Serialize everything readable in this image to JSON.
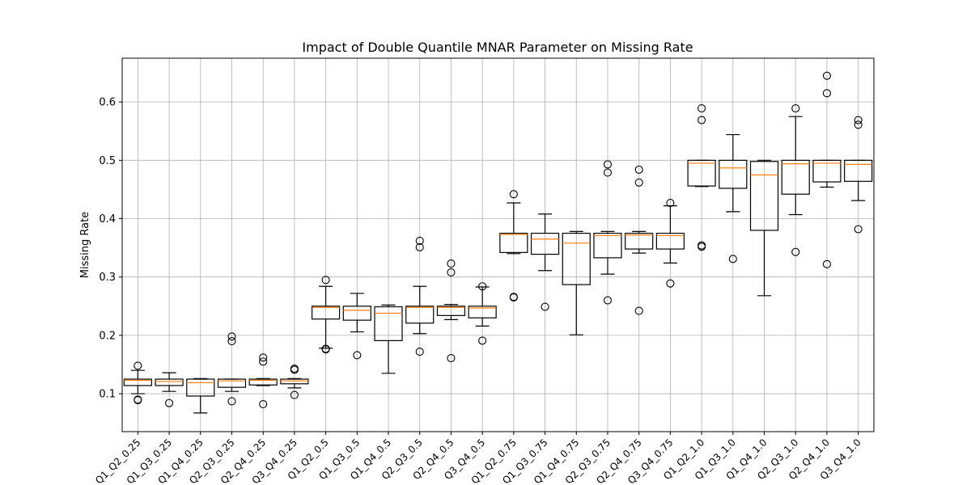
{
  "chart_data": {
    "type": "boxplot",
    "title": "Impact of Double Quantile MNAR Parameter on Missing Rate",
    "xlabel": "",
    "ylabel": "Missing Rate",
    "ylim": [
      0.035,
      0.675
    ],
    "yticks": [
      0.1,
      0.2,
      0.3,
      0.4,
      0.5,
      0.6
    ],
    "ytick_labels": [
      "0.1",
      "0.2",
      "0.3",
      "0.4",
      "0.5",
      "0.6"
    ],
    "grid": true,
    "categories": [
      "Q1_Q2_0.25",
      "Q1_Q3_0.25",
      "Q1_Q4_0.25",
      "Q2_Q3_0.25",
      "Q2_Q4_0.25",
      "Q3_Q4_0.25",
      "Q1_Q2_0.5",
      "Q1_Q3_0.5",
      "Q1_Q4_0.5",
      "Q2_Q3_0.5",
      "Q2_Q4_0.5",
      "Q3_Q4_0.5",
      "Q1_Q2_0.75",
      "Q1_Q3_0.75",
      "Q1_Q4_0.75",
      "Q2_Q3_0.75",
      "Q2_Q4_0.75",
      "Q3_Q4_0.75",
      "Q1_Q2_1.0",
      "Q1_Q3_1.0",
      "Q1_Q4_1.0",
      "Q2_Q3_1.0",
      "Q2_Q4_1.0",
      "Q3_Q4_1.0"
    ],
    "boxes": [
      {
        "whislo": 0.1,
        "q1": 0.114,
        "med": 0.123,
        "q3": 0.125,
        "whishi": 0.14,
        "fliers": [
          0.148,
          0.09,
          0.089
        ]
      },
      {
        "whislo": 0.104,
        "q1": 0.114,
        "med": 0.121,
        "q3": 0.125,
        "whishi": 0.136,
        "fliers": [
          0.084
        ]
      },
      {
        "whislo": 0.067,
        "q1": 0.096,
        "med": 0.119,
        "q3": 0.125,
        "whishi": 0.126,
        "fliers": []
      },
      {
        "whislo": 0.104,
        "q1": 0.111,
        "med": 0.122,
        "q3": 0.125,
        "whishi": 0.125,
        "fliers": [
          0.198,
          0.19,
          0.087
        ]
      },
      {
        "whislo": 0.114,
        "q1": 0.115,
        "med": 0.123,
        "q3": 0.125,
        "whishi": 0.126,
        "fliers": [
          0.162,
          0.155,
          0.082
        ]
      },
      {
        "whislo": 0.11,
        "q1": 0.117,
        "med": 0.122,
        "q3": 0.125,
        "whishi": 0.126,
        "fliers": [
          0.143,
          0.141,
          0.098
        ]
      },
      {
        "whislo": 0.178,
        "q1": 0.228,
        "med": 0.248,
        "q3": 0.25,
        "whishi": 0.284,
        "fliers": [
          0.295,
          0.177,
          0.176
        ]
      },
      {
        "whislo": 0.206,
        "q1": 0.226,
        "med": 0.243,
        "q3": 0.25,
        "whishi": 0.272,
        "fliers": [
          0.166
        ]
      },
      {
        "whislo": 0.135,
        "q1": 0.191,
        "med": 0.238,
        "q3": 0.249,
        "whishi": 0.252,
        "fliers": []
      },
      {
        "whislo": 0.203,
        "q1": 0.221,
        "med": 0.248,
        "q3": 0.25,
        "whishi": 0.284,
        "fliers": [
          0.362,
          0.351,
          0.172
        ]
      },
      {
        "whislo": 0.227,
        "q1": 0.234,
        "med": 0.248,
        "q3": 0.25,
        "whishi": 0.253,
        "fliers": [
          0.323,
          0.308,
          0.161
        ]
      },
      {
        "whislo": 0.216,
        "q1": 0.23,
        "med": 0.247,
        "q3": 0.25,
        "whishi": 0.283,
        "fliers": [
          0.284,
          0.191
        ]
      },
      {
        "whislo": 0.34,
        "q1": 0.342,
        "med": 0.373,
        "q3": 0.375,
        "whishi": 0.427,
        "fliers": [
          0.442,
          0.266,
          0.265
        ]
      },
      {
        "whislo": 0.311,
        "q1": 0.339,
        "med": 0.365,
        "q3": 0.375,
        "whishi": 0.408,
        "fliers": [
          0.249
        ]
      },
      {
        "whislo": 0.201,
        "q1": 0.287,
        "med": 0.358,
        "q3": 0.375,
        "whishi": 0.378,
        "fliers": []
      },
      {
        "whislo": 0.305,
        "q1": 0.333,
        "med": 0.371,
        "q3": 0.375,
        "whishi": 0.378,
        "fliers": [
          0.493,
          0.479,
          0.26
        ]
      },
      {
        "whislo": 0.341,
        "q1": 0.348,
        "med": 0.372,
        "q3": 0.375,
        "whishi": 0.378,
        "fliers": [
          0.484,
          0.462,
          0.242
        ]
      },
      {
        "whislo": 0.324,
        "q1": 0.348,
        "med": 0.371,
        "q3": 0.375,
        "whishi": 0.422,
        "fliers": [
          0.427,
          0.289
        ]
      },
      {
        "whislo": 0.455,
        "q1": 0.456,
        "med": 0.495,
        "q3": 0.5,
        "whishi": 0.5,
        "fliers": [
          0.589,
          0.569,
          0.354,
          0.352
        ]
      },
      {
        "whislo": 0.412,
        "q1": 0.452,
        "med": 0.487,
        "q3": 0.5,
        "whishi": 0.544,
        "fliers": [
          0.331
        ]
      },
      {
        "whislo": 0.268,
        "q1": 0.38,
        "med": 0.475,
        "q3": 0.498,
        "whishi": 0.5,
        "fliers": []
      },
      {
        "whislo": 0.407,
        "q1": 0.442,
        "med": 0.494,
        "q3": 0.5,
        "whishi": 0.575,
        "fliers": [
          0.589,
          0.343
        ]
      },
      {
        "whislo": 0.454,
        "q1": 0.463,
        "med": 0.495,
        "q3": 0.5,
        "whishi": 0.5,
        "fliers": [
          0.645,
          0.615,
          0.322
        ]
      },
      {
        "whislo": 0.431,
        "q1": 0.464,
        "med": 0.493,
        "q3": 0.5,
        "whishi": 0.5,
        "fliers": [
          0.569,
          0.561,
          0.382
        ]
      }
    ],
    "colors": {
      "median": "#ff7f0e",
      "box": "#000000",
      "grid": "#b0b0b0",
      "background": "#ffffff"
    }
  }
}
